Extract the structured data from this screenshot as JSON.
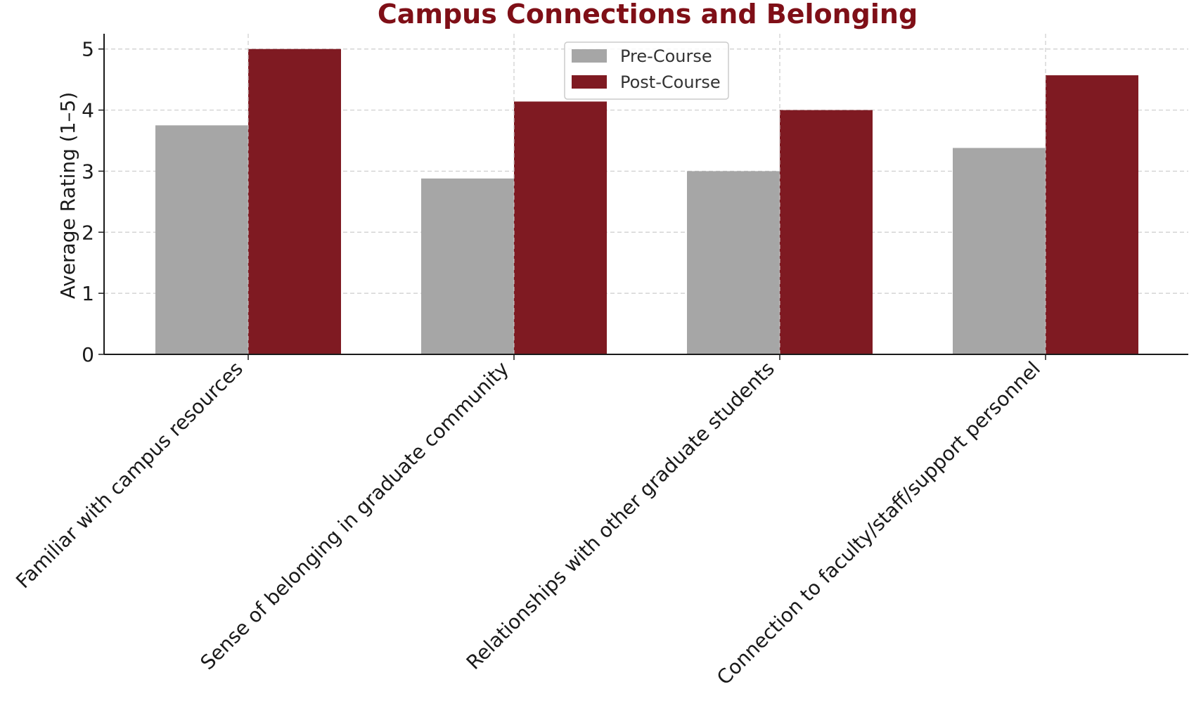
{
  "chart_data": {
    "type": "bar",
    "title": "Campus Connections and Belonging",
    "xlabel": "",
    "ylabel": "Average Rating (1–5)",
    "categories": [
      "Familiar with campus resources",
      "Sense of belonging in graduate community",
      "Relationships with other graduate students",
      "Connection to faculty/staff/support personnel"
    ],
    "series": [
      {
        "name": "Pre-Course",
        "color": "#a6a6a6",
        "values": [
          3.75,
          2.88,
          3.0,
          3.38
        ]
      },
      {
        "name": "Post-Course",
        "color": "#7f1a22",
        "values": [
          5.0,
          4.14,
          4.0,
          4.57
        ]
      }
    ],
    "ylim": [
      0,
      5.25
    ],
    "yticks": [
      0,
      1,
      2,
      3,
      4,
      5
    ],
    "grid": true,
    "legend_position": "top-center",
    "title_color": "#7f0f17"
  }
}
